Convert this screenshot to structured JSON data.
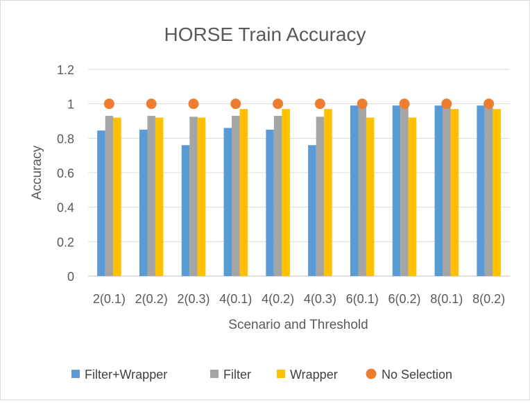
{
  "chart_data": {
    "type": "bar",
    "title": "HORSE Train Accuracy",
    "xlabel": "Scenario and Threshold",
    "ylabel": "Accuracy",
    "ylim": [
      0,
      1.2
    ],
    "yticks": [
      "0",
      "0.2",
      "0.4",
      "0.6",
      "0.8",
      "1",
      "1.2"
    ],
    "grid": true,
    "legend_position": "bottom",
    "categories": [
      "2(0.1)",
      "2(0.2)",
      "2(0.3)",
      "4(0.1)",
      "4(0.2)",
      "4(0.3)",
      "6(0.1)",
      "6(0.2)",
      "8(0.1)",
      "8(0.2)"
    ],
    "series": [
      {
        "name": "Filter+Wrapper",
        "kind": "bar",
        "color": "#5b9bd5",
        "values": [
          0.845,
          0.85,
          0.76,
          0.86,
          0.85,
          0.76,
          0.99,
          0.99,
          0.99,
          0.99
        ]
      },
      {
        "name": "Filter",
        "kind": "bar",
        "color": "#a5a5a5",
        "values": [
          0.93,
          0.93,
          0.925,
          0.93,
          0.93,
          0.925,
          0.995,
          0.995,
          0.995,
          0.995
        ]
      },
      {
        "name": "Wrapper",
        "kind": "bar",
        "color": "#ffc000",
        "values": [
          0.92,
          0.92,
          0.92,
          0.97,
          0.97,
          0.97,
          0.92,
          0.92,
          0.97,
          0.97
        ]
      },
      {
        "name": "No Selection",
        "kind": "marker",
        "color": "#ed7d31",
        "values": [
          1,
          1,
          1,
          1,
          1,
          1,
          1,
          1,
          1,
          1
        ]
      }
    ]
  }
}
